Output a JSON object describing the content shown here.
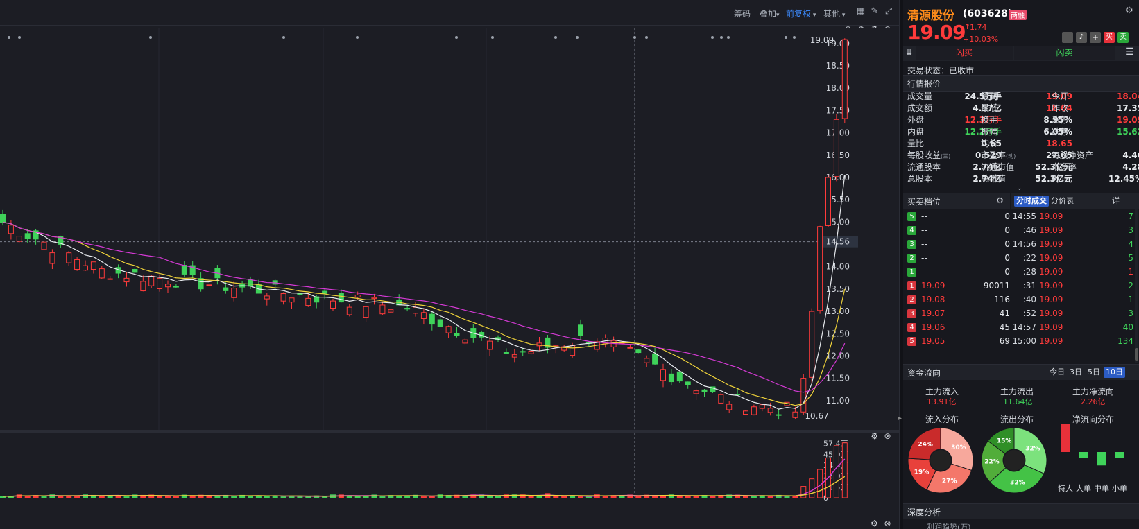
{
  "toolbar": {
    "items": [
      "筹码",
      "叠加",
      "前复权",
      "其他"
    ]
  },
  "chart": {
    "y_ticks": [
      "19.00",
      "18.50",
      "18.00",
      "17.50",
      "17.00",
      "16.50",
      "16.00",
      "15.50",
      "15.00",
      "14.56",
      "14.00",
      "13.50",
      "13.00",
      "12.50",
      "12.00",
      "11.50",
      "11.00"
    ],
    "crosshair_value": "14.56",
    "high_label": "19.09",
    "low_label": "10.67",
    "vol_ticks": [
      "57.4万",
      "45.9万",
      "34.5万",
      "23.0万",
      "11.5万",
      "0"
    ]
  },
  "stock": {
    "name": "清源股份",
    "code": "(603628)",
    "tag": "两融",
    "price": "19.09",
    "change": "1.74",
    "change_pct": "+10.03%",
    "buy_label": "买",
    "sell_label": "卖"
  },
  "flash": {
    "buy": "闪买",
    "sell": "闪卖"
  },
  "trade_status": "交易状态：已收市",
  "quote_title": "行情报价",
  "quote": [
    {
      "l1": "成交量",
      "v1": "24.5万手",
      "c1": "white",
      "l2": "最高",
      "v2": "19.09",
      "c2": "red",
      "l3": "今开",
      "v3": "18.04",
      "c3": "red"
    },
    {
      "l1": "成交额",
      "v1": "4.57亿",
      "c1": "white",
      "l2": "最低",
      "v2": "18.04",
      "c2": "red",
      "l3": "昨收",
      "v3": "17.35",
      "c3": "white"
    },
    {
      "l1": "外盘",
      "v1": "12.3万手",
      "c1": "red",
      "l2": "换手",
      "v2": "8.95%",
      "c2": "white",
      "l3": "涨停",
      "v3": "19.09",
      "c3": "red"
    },
    {
      "l1": "内盘",
      "v1": "12.2万手",
      "c1": "green",
      "l2": "振幅",
      "v2": "6.05%",
      "c2": "white",
      "l3": "跌停",
      "v3": "15.62",
      "c3": "green"
    },
    {
      "l1": "量比",
      "v1": "0.65",
      "c1": "white",
      "l2": "均价",
      "v2": "18.65",
      "c2": "red",
      "l3": "",
      "v3": "",
      "c3": "white"
    }
  ],
  "fundamentals": [
    {
      "l1": "每股收益",
      "s1": "(三)",
      "v1": "0.529",
      "l2": "市盈率",
      "s2": "(动)",
      "v2": "27.05",
      "l3": "每股净资产",
      "v3": "4.46"
    },
    {
      "l1": "流通股本",
      "s1": "",
      "v1": "2.74亿",
      "l2": "流通市值",
      "s2": "",
      "v2": "52.3亿元",
      "l3": "市净率",
      "v3": "4.28"
    },
    {
      "l1": "总股本",
      "s1": "",
      "v1": "2.74亿",
      "l2": "总市值",
      "s2": "",
      "v2": "52.3亿元",
      "l3": "ROE",
      "v3": "12.45%"
    }
  ],
  "orderbook_title": "买卖档位",
  "orderbook": [
    {
      "lvl": "5",
      "side": "sell",
      "price": "--",
      "vol": "0"
    },
    {
      "lvl": "4",
      "side": "sell",
      "price": "--",
      "vol": "0"
    },
    {
      "lvl": "3",
      "side": "sell",
      "price": "--",
      "vol": "0"
    },
    {
      "lvl": "2",
      "side": "sell",
      "price": "--",
      "vol": "0"
    },
    {
      "lvl": "1",
      "side": "sell",
      "price": "--",
      "vol": "0"
    },
    {
      "lvl": "1",
      "side": "buy",
      "price": "19.09",
      "vol": "90011"
    },
    {
      "lvl": "2",
      "side": "buy",
      "price": "19.08",
      "vol": "116"
    },
    {
      "lvl": "3",
      "side": "buy",
      "price": "19.07",
      "vol": "41"
    },
    {
      "lvl": "4",
      "side": "buy",
      "price": "19.06",
      "vol": "45"
    },
    {
      "lvl": "5",
      "side": "buy",
      "price": "19.05",
      "vol": "69"
    }
  ],
  "tick_tabs": [
    "分时成交",
    "分价表",
    "详"
  ],
  "ticks": [
    {
      "t": "14:55",
      "p": "19.09",
      "v": "7",
      "vc": "green"
    },
    {
      "t": ":46",
      "p": "19.09",
      "v": "3",
      "vc": "green"
    },
    {
      "t": "14:56",
      "p": "19.09",
      "v": "4",
      "vc": "green"
    },
    {
      "t": ":22",
      "p": "19.09",
      "v": "5",
      "vc": "green"
    },
    {
      "t": ":28",
      "p": "19.09",
      "v": "1",
      "vc": "red"
    },
    {
      "t": ":31",
      "p": "19.09",
      "v": "2",
      "vc": "green"
    },
    {
      "t": ":40",
      "p": "19.09",
      "v": "1",
      "vc": "green"
    },
    {
      "t": ":52",
      "p": "19.09",
      "v": "3",
      "vc": "green"
    },
    {
      "t": "14:57",
      "p": "19.09",
      "v": "40",
      "vc": "green"
    },
    {
      "t": "15:00",
      "p": "19.09",
      "v": "134",
      "vc": "green"
    }
  ],
  "capital": {
    "title": "资金流向",
    "tabs": [
      "今日",
      "3日",
      "5日",
      "10日"
    ],
    "inflow_label": "主力流入",
    "inflow": "13.91亿",
    "outflow_label": "主力流出",
    "outflow": "11.64亿",
    "net_label": "主力净流向",
    "net": "2.26亿",
    "dist_in": "流入分布",
    "dist_out": "流出分布",
    "dist_net": "净流向分布",
    "pie_in": [
      {
        "pct": "30%",
        "value": 30,
        "color": "#f7a89c"
      },
      {
        "pct": "27%",
        "value": 27,
        "color": "#f4776a"
      },
      {
        "pct": "19%",
        "value": 19,
        "color": "#e8413b"
      },
      {
        "pct": "24%",
        "value": 24,
        "color": "#c92b2b"
      }
    ],
    "pie_out": [
      {
        "pct": "32%",
        "value": 32,
        "color": "#7ce27d"
      },
      {
        "pct": "32%",
        "value": 32,
        "color": "#44c246"
      },
      {
        "pct": "22%",
        "value": 22,
        "color": "#51ad3a"
      },
      {
        "pct": "15%",
        "value": 15,
        "color": "#2f8f27"
      }
    ],
    "net_bars": [
      {
        "label": "特大",
        "value": 0.75,
        "color": "#e8313a"
      },
      {
        "label": "大单",
        "value": -0.15,
        "color": "#3fd35a"
      },
      {
        "label": "中单",
        "value": -0.35,
        "color": "#3fd35a"
      },
      {
        "label": "小单",
        "value": -0.15,
        "color": "#3fd35a"
      }
    ]
  },
  "depth_title": "深度分析",
  "depth_sub": "利润趋势(万)"
}
